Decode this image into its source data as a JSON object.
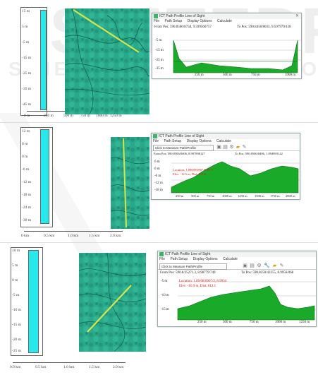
{
  "watermark": {
    "text_main": "SCITEPRESS",
    "text_sub_left": "SCIENCE",
    "text_sub_right": "TECHNOLOGY"
  },
  "colors": {
    "fill": "#27e8ea",
    "terrain": "#2aa88a",
    "profile": "#1aaa2a",
    "route": "#d6e64a"
  },
  "panels": [
    {
      "scale": {
        "ticks": [
          "15 m",
          "5 m",
          "-5 m",
          "-15 m",
          "-25 m",
          "-35 m",
          "-45 m"
        ],
        "axis": [
          "0 m",
          "250 m",
          "500 m",
          "750 m",
          "1000 m",
          "1250 m"
        ]
      },
      "window": {
        "title": "ICT Path Profile Line of Sight",
        "menu": [
          "File",
          "Path Setup",
          "Display Options",
          "Calculate"
        ],
        "tool_field": "Click to Measure Path/Profile",
        "from": "From Pos: 590.8506/8758, 9.599560757",
        "to": "To Pos: 590.8450/8033, 9.597979/128",
        "yticks": [
          "-5 m",
          "-15 m",
          "-25 m",
          "-35 m"
        ],
        "xticks": [
          "250 m",
          "500 m",
          "750 m",
          "1000 m"
        ],
        "annotation_1": "",
        "annotation_2": ""
      }
    },
    {
      "scale": {
        "ticks": [
          "12 m",
          "6 m",
          "0 m",
          "-6 m",
          "-12 m",
          "-18 m",
          "-24 m",
          "-30 m"
        ],
        "axis": [
          "0 km",
          "0.5 km",
          "1.0 km",
          "1.5 km",
          "2.0 km"
        ]
      },
      "window": {
        "title": "ICT Path Profile Line of Sight",
        "menu": [
          "File",
          "Path Setup",
          "Display Options",
          "Calculate"
        ],
        "tool_field": "Click to Measure Path/Profile",
        "from": "From Pos: 590.8506/8406, 8.997898127",
        "to": "To Pos: 590.8506/8406, 1.89489/0.42",
        "yticks": [
          "6 m",
          "0 m",
          "-6 m",
          "-12 m",
          "-18 m"
        ],
        "xticks": [
          "250 m",
          "500 m",
          "750 m",
          "1000 m",
          "1250 m",
          "1500 m",
          "1750 m",
          "2000 m"
        ],
        "annotation_1": "Location: 1.89089/0807,8.9979",
        "annotation_2": "Elev: -12.5 m, Dist: 813.6"
      }
    },
    {
      "scale": {
        "ticks": [
          "10 m",
          "5 m",
          "0 m",
          "-5 m",
          "-10 m",
          "-15 m",
          "-20 m",
          "-25 m"
        ],
        "axis": [
          "0.0 km",
          "0.5 km",
          "1.0 km",
          "1.5 km",
          "2.0 km"
        ]
      },
      "window": {
        "title": "ICT Path Profile Line of Sight",
        "menu": [
          "File",
          "Path Setup",
          "Display Options",
          "Calculate"
        ],
        "tool_field": "Click to Measure Path/Profile",
        "from": "From Pos: 590.8/25271.3, 8.98779/749",
        "to": "To Pos: 590.8250/42255, 8.9956/068",
        "yticks": [
          "-5 m",
          "-10 m",
          "-15 m"
        ],
        "xticks": [
          "250 m",
          "500 m",
          "750 m",
          "1000 m",
          "1250 m"
        ],
        "annotation_1": "Location: 1.89/08/0007/2, 8.9934",
        "annotation_2": "Elev: -10.9 m, Dist: 812.1"
      }
    }
  ]
}
